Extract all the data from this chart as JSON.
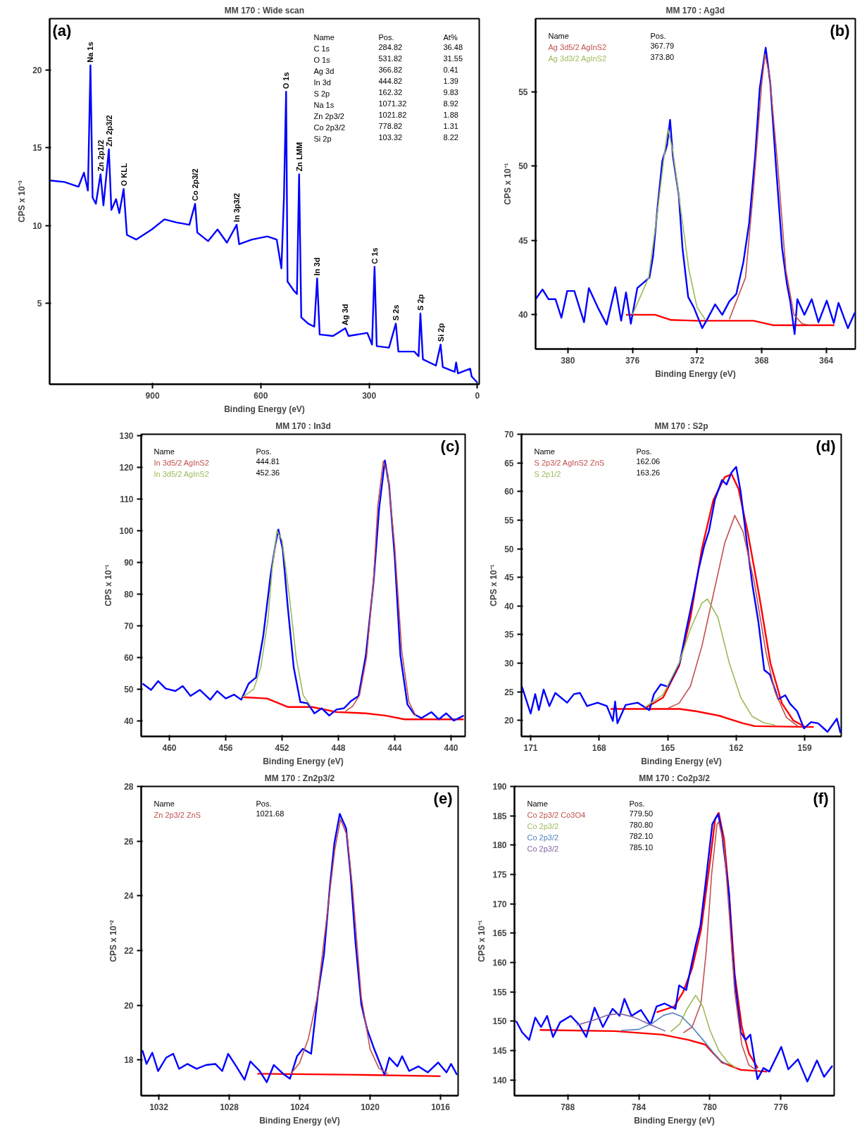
{
  "chart_data": [
    {
      "type": "line",
      "title": "MM 170 : Wide scan",
      "subtitle": "(a)",
      "xlabel": "Binding Energy (eV)",
      "ylabel": "CPS x 10⁻³",
      "xlim": [
        1185,
        -5
      ],
      "ylim": [
        -0.2,
        23.3
      ],
      "xticks": [
        900,
        600,
        300,
        0
      ],
      "yticks": [
        5,
        10,
        15,
        20
      ],
      "grid": false,
      "series": [
        {
          "color": "#0000ff",
          "x": [
            1183,
            1144,
            1105,
            1090,
            1079,
            1072,
            1066,
            1057,
            1044,
            1036,
            1021,
            1014,
            1001,
            992,
            980,
            971,
            945,
            902,
            867,
            833,
            798,
            782,
            776,
            746,
            720,
            694,
            667,
            660,
            625,
            582,
            556,
            543,
            536,
            530,
            526,
            508,
            500,
            494,
            488,
            469,
            452,
            444,
            437,
            400,
            366,
            357,
            305,
            292,
            285,
            279,
            245,
            226,
            219,
            175,
            163,
            158,
            151,
            115,
            102,
            96,
            63,
            59,
            54,
            20,
            16,
            0
          ],
          "values": [
            12.9,
            12.8,
            12.5,
            13.4,
            12.25,
            20.3,
            11.8,
            11.4,
            13.3,
            11.3,
            14.9,
            11.0,
            11.7,
            10.8,
            12.35,
            9.4,
            9.1,
            9.75,
            10.4,
            10.2,
            10.05,
            11.4,
            9.55,
            9.0,
            9.75,
            8.9,
            10.05,
            8.8,
            9.1,
            9.3,
            9.1,
            7.25,
            11.8,
            18.6,
            6.4,
            5.8,
            5.6,
            13.3,
            4.1,
            3.7,
            3.5,
            6.6,
            3.0,
            2.9,
            3.4,
            2.9,
            3.1,
            2.35,
            7.35,
            2.25,
            2.15,
            3.7,
            1.9,
            1.9,
            1.6,
            4.35,
            1.4,
            1.0,
            2.35,
            0.9,
            0.6,
            1.2,
            0.5,
            0.8,
            0.3,
            -0.1
          ]
        }
      ],
      "annotations": [
        {
          "text": "Na 1s",
          "x": 1072,
          "y": 20.3
        },
        {
          "text": "Zn 2p1/2",
          "x": 1044,
          "y": 13.3
        },
        {
          "text": "Zn 2p3/2",
          "x": 1021,
          "y": 14.9
        },
        {
          "text": "O KLL",
          "x": 980,
          "y": 12.35
        },
        {
          "text": "Co 2p3/2",
          "x": 782,
          "y": 11.4
        },
        {
          "text": "In 3p3/2",
          "x": 667,
          "y": 10.05
        },
        {
          "text": "O 1s",
          "x": 530,
          "y": 18.6
        },
        {
          "text": "Zn LMM",
          "x": 494,
          "y": 13.3
        },
        {
          "text": "In 3d",
          "x": 444,
          "y": 6.6
        },
        {
          "text": "Ag 3d",
          "x": 366,
          "y": 3.4
        },
        {
          "text": "C 1s",
          "x": 285,
          "y": 7.35
        },
        {
          "text": "S 2s",
          "x": 226,
          "y": 3.7
        },
        {
          "text": "S 2p",
          "x": 158,
          "y": 4.35
        },
        {
          "text": "Si 2p",
          "x": 102,
          "y": 2.35
        },
        "Name\tPos.\tAt%",
        "C 1s\t284.82\t36.48",
        "O 1s\t531.82\t31.55",
        "Ag 3d\t366.82\t0.41",
        "In 3d\t444.82\t1.39",
        "S 2p\t162.32\t9.83",
        "Na 1s\t1071.32\t8.92",
        "Zn 2p3/2\t1021.82\t1.88",
        "Co 2p3/2\t778.82\t1.31",
        "Si 2p\t103.32\t8.22"
      ]
    },
    {
      "type": "line",
      "title": "MM 170 : Ag3d",
      "subtitle": "(b)",
      "xlabel": "Binding Energy (eV)",
      "ylabel": "CPS x 10⁻¹",
      "xlim": [
        382,
        362.2
      ],
      "ylim": [
        37.7,
        59.9
      ],
      "xticks": [
        380,
        376,
        372,
        368,
        364
      ],
      "yticks": [
        40,
        45,
        50,
        55
      ],
      "grid": false,
      "legend": "top left",
      "legend_title": "Name",
      "series": [
        {
          "color": "#ff0000",
          "x": [
            376.4,
            374.6,
            373.6,
            372,
            368.5,
            367.3,
            363.5
          ],
          "values": [
            40.0,
            40.0,
            39.65,
            39.6,
            39.6,
            39.3,
            39.3
          ]
        },
        {
          "color": "#0000ff",
          "x": [
            382.0,
            381.57,
            381.2,
            380.77,
            380.4,
            380.04,
            379.6,
            379.0,
            378.7,
            378.15,
            377.6,
            377.06,
            376.7,
            376.4,
            376.1,
            375.7,
            374.95,
            374.73,
            374.44,
            374.15,
            373.86,
            373.67,
            373.5,
            373.13,
            372.9,
            372.55,
            372.2,
            371.68,
            371.32,
            370.88,
            370.44,
            370.0,
            369.57,
            369.13,
            368.77,
            368.4,
            368.12,
            367.75,
            367.46,
            367.1,
            366.73,
            366.44,
            366.23,
            365.96,
            365.79,
            365.35,
            364.9,
            364.48,
            363.97,
            363.53,
            363.24,
            362.66,
            362.23
          ],
          "values": [
            41.05,
            41.7,
            41.05,
            41.05,
            39.8,
            41.6,
            41.6,
            39.5,
            41.8,
            40.5,
            39.35,
            41.85,
            39.6,
            41.5,
            39.4,
            41.8,
            42.5,
            43.9,
            47.3,
            50.35,
            51.4,
            53.1,
            50.7,
            48.0,
            44.45,
            41.2,
            40.5,
            39.1,
            39.8,
            40.7,
            40.0,
            40.9,
            41.4,
            43.55,
            46.2,
            50.7,
            55.2,
            57.95,
            55.5,
            49.8,
            44.45,
            42.1,
            40.9,
            38.7,
            41.05,
            40.0,
            41.05,
            39.5,
            40.95,
            39.45,
            40.8,
            39.1,
            40.15
          ]
        },
        {
          "name": "Ag 3d5/2  AgInS2",
          "color": "#c0504d",
          "x": [
            370,
            369,
            368.5,
            368,
            367.79,
            367.5,
            367,
            366.5,
            366,
            365.5,
            365
          ],
          "values": [
            39.7,
            42.5,
            48.5,
            55.5,
            57.5,
            56,
            50,
            43,
            40,
            39.4,
            39.3
          ]
        },
        {
          "name": "Ag 3d3/2  AgInS2",
          "color": "#9bbb59",
          "x": [
            376,
            375,
            374.5,
            374,
            373.8,
            373.5,
            373,
            372.5,
            372,
            371.5
          ],
          "values": [
            40,
            42.5,
            46.5,
            51,
            52.5,
            51,
            47,
            43,
            40.5,
            39.7
          ]
        }
      ],
      "annotations": [
        "Pos.",
        "367.79",
        "373.80"
      ]
    },
    {
      "type": "line",
      "title": "MM 170 : In3d",
      "subtitle": "(c)",
      "xlabel": "Binding Energy (eV)",
      "ylabel": "CPS x 10⁻¹",
      "xlim": [
        462,
        439
      ],
      "ylim": [
        35,
        130.5
      ],
      "xticks": [
        460,
        456,
        452,
        448,
        444,
        440
      ],
      "yticks": [
        40,
        50,
        60,
        70,
        80,
        90,
        100,
        110,
        120,
        130
      ],
      "grid": false,
      "legend": "top left",
      "legend_title": "Name",
      "series": [
        {
          "color": "#ff0000",
          "x": [
            454.8,
            453.07,
            451.6,
            449.87,
            448.14,
            446.05,
            444.67,
            443.3,
            439.1
          ],
          "values": [
            47.4,
            47.0,
            44.3,
            44.3,
            42.7,
            42.3,
            41.6,
            40.4,
            40.4
          ]
        },
        {
          "color": "#0000ff",
          "x": [
            461.9,
            461.3,
            460.8,
            460.26,
            459.57,
            459.05,
            458.5,
            457.84,
            457.1,
            456.6,
            456.0,
            455.4,
            454.9,
            454.37,
            453.85,
            453.33,
            452.8,
            452.47,
            452.26,
            451.95,
            451.6,
            451.17,
            450.7,
            450.2,
            449.7,
            449.18,
            448.65,
            448.14,
            447.6,
            447.1,
            446.57,
            446.05,
            445.5,
            445.1,
            444.7,
            444.4,
            444.0,
            443.6,
            443.1,
            442.6,
            442.1,
            441.4,
            440.87,
            440.35,
            439.8,
            439.1
          ],
          "values": [
            51.7,
            49.7,
            52.5,
            50.1,
            49.35,
            50.9,
            47.8,
            49.7,
            46.6,
            49.35,
            47.0,
            48.2,
            46.6,
            51.7,
            53.6,
            66.9,
            86.4,
            95.7,
            100.4,
            94.2,
            76.2,
            56.75,
            45.85,
            45.5,
            42.3,
            43.9,
            41.6,
            43.5,
            43.9,
            46.2,
            47.8,
            60.65,
            84.0,
            107.4,
            122.2,
            114.4,
            91.8,
            60.65,
            45.1,
            41.95,
            40.8,
            42.7,
            40.4,
            42.3,
            40.0,
            41.6
          ]
        },
        {
          "name": "In 3d5/2  AgInS2",
          "color": "#c0504d",
          "x": [
            447.5,
            447,
            446.5,
            446,
            445.5,
            445.2,
            444.81,
            444.5,
            444,
            443.5,
            443,
            442.5
          ],
          "values": [
            43,
            44.5,
            48,
            60,
            85,
            108,
            122,
            118,
            95,
            62,
            46,
            41.5
          ]
        },
        {
          "name": "In 3d5/2  AgInS2",
          "color": "#9bbb59",
          "x": [
            454.8,
            454,
            453.5,
            453,
            452.7,
            452.36,
            452,
            451.5,
            451,
            450.5,
            450
          ],
          "values": [
            47.4,
            50,
            57,
            72,
            88,
            100,
            97,
            80,
            60,
            48,
            44.8
          ]
        }
      ],
      "annotations": [
        "Pos.",
        "444.81",
        "452.36"
      ]
    },
    {
      "type": "line",
      "title": "MM 170 : S2p",
      "subtitle": "(d)",
      "xlabel": "Binding Energy (eV)",
      "ylabel": "CPS x 10⁻¹",
      "xlim": [
        171.4,
        157.4
      ],
      "ylim": [
        17.2,
        70
      ],
      "xticks": [
        171,
        168,
        165,
        162,
        159
      ],
      "yticks": [
        20,
        25,
        30,
        35,
        40,
        45,
        50,
        55,
        60,
        65,
        70
      ],
      "grid": false,
      "legend": "top left",
      "legend_title": "Name",
      "series": [
        {
          "color": "#ff0000",
          "x": [
            167.5,
            164.47,
            163.75,
            162.73,
            161.7,
            161.18,
            158.6
          ],
          "values": [
            22.0,
            22.0,
            21.6,
            20.8,
            19.5,
            19.0,
            18.85
          ]
        },
        {
          "color": "#ff0000",
          "x": [
            166.0,
            165.2,
            164.5,
            164,
            163.5,
            163,
            162.5,
            162.2,
            161.9,
            161.5,
            161,
            160.5,
            160,
            159.5,
            159
          ],
          "values": [
            22.1,
            24.0,
            29.5,
            38,
            50,
            58.5,
            62.5,
            63.0,
            60.5,
            53,
            42,
            30,
            23,
            20,
            18.9
          ]
        },
        {
          "color": "#0000ff",
          "x": [
            171.38,
            171.0,
            170.8,
            170.64,
            170.43,
            170.18,
            169.92,
            169.4,
            169.1,
            168.84,
            168.53,
            168.07,
            167.66,
            167.4,
            167.3,
            167.2,
            166.84,
            166.32,
            165.8,
            165.6,
            165.3,
            164.99,
            164.78,
            164.47,
            164.17,
            163.86,
            163.65,
            163.4,
            163.19,
            162.93,
            162.62,
            162.42,
            162.21,
            162.0,
            161.8,
            161.54,
            161.29,
            161.03,
            160.77,
            160.52,
            160.16,
            159.85,
            159.64,
            159.33,
            159.03,
            158.72,
            158.41,
            158.0,
            157.59,
            157.43
          ],
          "values": [
            25.9,
            21.2,
            24.6,
            21.8,
            25.4,
            22.5,
            24.8,
            23.1,
            24.6,
            24.8,
            22.5,
            23.1,
            22.5,
            19.9,
            23.3,
            19.5,
            22.7,
            23.1,
            21.8,
            24.6,
            26.3,
            25.9,
            27.6,
            30.1,
            36.1,
            42.0,
            46.3,
            50.5,
            53.1,
            58.6,
            62.0,
            61.2,
            63.3,
            64.3,
            59.9,
            51.4,
            43.7,
            37.3,
            28.8,
            28.0,
            23.7,
            24.4,
            22.9,
            21.6,
            18.6,
            19.7,
            19.5,
            18.0,
            20.3,
            17.8
          ]
        },
        {
          "name": "S 2p3/2 AgInS2 ZnS",
          "color": "#c0504d",
          "x": [
            165,
            164.5,
            164,
            163.5,
            163,
            162.5,
            162.06,
            161.7,
            161.2,
            160.7,
            160.3,
            159.8,
            159.3
          ],
          "values": [
            22.1,
            23.0,
            26,
            33,
            42,
            51,
            55.8,
            53,
            44,
            32,
            25,
            20.5,
            19.0
          ]
        },
        {
          "name": "S 2p1/2",
          "color": "#9bbb59",
          "x": [
            166.0,
            165.2,
            164.5,
            164,
            163.5,
            163.26,
            162.8,
            162.3,
            161.8,
            161.3,
            160.8,
            160.3
          ],
          "values": [
            22.3,
            24.5,
            30,
            36,
            40.5,
            41.2,
            38,
            30,
            24,
            20.7,
            19.6,
            19.2
          ]
        }
      ],
      "annotations": [
        "Pos.",
        "162.06",
        "163.26"
      ]
    },
    {
      "type": "line",
      "title": "MM 170 : Zn2p3/2",
      "subtitle": "(e)",
      "xlabel": "Binding Energy (eV)",
      "ylabel": "CPS x 10⁻²",
      "xlim": [
        1033,
        1015
      ],
      "ylim": [
        16.7,
        28
      ],
      "xticks": [
        1032,
        1028,
        1024,
        1020,
        1016
      ],
      "yticks": [
        18,
        20,
        22,
        24,
        26,
        28
      ],
      "grid": false,
      "legend": "top left",
      "legend_title": "Name",
      "series": [
        {
          "color": "#ff0000",
          "x": [
            1026.4,
            1020.43,
            1016.0
          ],
          "values": [
            17.5,
            17.46,
            17.41
          ]
        },
        {
          "color": "#0000ff",
          "x": [
            1032.93,
            1032.7,
            1032.37,
            1032.04,
            1031.58,
            1031.18,
            1030.85,
            1030.38,
            1029.85,
            1029.32,
            1028.79,
            1028.4,
            1028.06,
            1027.6,
            1027.13,
            1026.8,
            1026.27,
            1025.87,
            1025.47,
            1024.94,
            1024.55,
            1024.15,
            1023.82,
            1023.35,
            1022.95,
            1022.62,
            1022.29,
            1022.03,
            1021.72,
            1021.36,
            1021.1,
            1020.83,
            1020.5,
            1020.17,
            1019.77,
            1019.18,
            1018.91,
            1018.45,
            1018.18,
            1017.78,
            1017.25,
            1016.72,
            1016.13,
            1015.66,
            1015.4,
            1015.06
          ],
          "values": [
            18.36,
            17.86,
            18.27,
            17.6,
            18.09,
            18.23,
            17.68,
            17.86,
            17.68,
            17.82,
            17.86,
            17.6,
            18.23,
            17.77,
            17.28,
            17.95,
            17.6,
            17.19,
            17.82,
            17.5,
            17.32,
            18.14,
            18.41,
            18.23,
            20.49,
            21.85,
            24.29,
            25.92,
            27.0,
            26.46,
            24.74,
            22.3,
            20.04,
            19.13,
            18.41,
            17.46,
            18.09,
            17.77,
            18.14,
            17.6,
            17.77,
            17.55,
            17.91,
            17.55,
            17.86,
            17.46
          ]
        },
        {
          "name": "Zn 2p3/2  ZnS",
          "color": "#c0504d",
          "x": [
            1024.5,
            1024,
            1023.5,
            1023,
            1022.5,
            1022,
            1021.68,
            1021.3,
            1021,
            1020.5,
            1020,
            1019.5,
            1019
          ],
          "values": [
            17.5,
            17.9,
            18.8,
            20.3,
            23.0,
            25.7,
            26.8,
            26.2,
            24.3,
            20.3,
            18.4,
            17.7,
            17.5
          ]
        }
      ],
      "annotations": [
        "Pos.",
        "1021.68"
      ]
    },
    {
      "type": "line",
      "title": "MM 170 : Co2p3/2",
      "subtitle": "(f)",
      "xlabel": "Binding Energy (eV)",
      "ylabel": "CPS x 10⁻¹",
      "xlim": [
        791,
        773
      ],
      "ylim": [
        137.3,
        190
      ],
      "xticks": [
        788,
        784,
        780,
        776
      ],
      "yticks": [
        140,
        145,
        150,
        155,
        160,
        165,
        170,
        175,
        180,
        185,
        190
      ],
      "grid": false,
      "legend": "top left",
      "legend_title": "Name",
      "series": [
        {
          "color": "#ff0000",
          "x": [
            789.57,
            785.35,
            782.67,
            781.2,
            780.26,
            779.33,
            778.26,
            776.78
          ],
          "values": [
            148.5,
            148.3,
            147.7,
            146.8,
            146.0,
            143.0,
            141.7,
            141.4
          ]
        },
        {
          "color": "#ff0000",
          "x": [
            783,
            782,
            781.5,
            781,
            780.5,
            780,
            779.7,
            779.5,
            779.2,
            778.9,
            778.6,
            778.2,
            777.8,
            777.3
          ],
          "values": [
            151.5,
            152.5,
            155,
            159,
            165.5,
            177,
            184.5,
            185.5,
            181,
            171,
            158,
            149,
            144.5,
            142
          ]
        },
        {
          "color": "#0000ff",
          "x": [
            790.9,
            790.57,
            790.17,
            789.83,
            789.5,
            789.16,
            788.83,
            788.43,
            787.83,
            787.36,
            786.96,
            786.49,
            786.02,
            785.48,
            785.08,
            784.81,
            784.41,
            783.88,
            783.34,
            783.0,
            782.54,
            781.94,
            781.73,
            781.33,
            781.07,
            780.8,
            780.53,
            780.26,
            779.86,
            779.53,
            779.33,
            778.92,
            778.72,
            778.52,
            778.26,
            777.99,
            777.72,
            777.32,
            776.98,
            776.65,
            775.98,
            775.58,
            775.04,
            774.51,
            773.97,
            773.57,
            773.1
          ],
          "values": [
            150.0,
            148.1,
            146.8,
            150.6,
            149.0,
            150.9,
            147.3,
            149.8,
            150.9,
            149.4,
            147.3,
            152.3,
            149.0,
            152.1,
            150.9,
            153.8,
            150.9,
            151.9,
            149.4,
            152.5,
            153.0,
            152.1,
            156.1,
            155.3,
            159.1,
            162.9,
            166.3,
            173.0,
            183.6,
            185.3,
            182.3,
            171.8,
            161.2,
            154.9,
            148.1,
            146.8,
            147.7,
            140.1,
            142.0,
            141.4,
            145.6,
            141.8,
            143.5,
            139.7,
            143.3,
            140.5,
            142.4
          ]
        },
        {
          "name": "Co 2p3/2 Co3O4",
          "color": "#c0504d",
          "x": [
            781.5,
            781,
            780.5,
            780.2,
            779.9,
            779.6,
            779.5,
            779.2,
            778.9,
            778.6,
            778.2,
            777.8,
            777.3
          ],
          "values": [
            148.0,
            149,
            153,
            162,
            175,
            183.5,
            184,
            180,
            168,
            155,
            146,
            142.5,
            141.5
          ]
        },
        {
          "name": "Co 2p3/2",
          "color": "#9bbb59",
          "x": [
            782.2,
            781.7,
            781.3,
            780.8,
            780.4,
            780,
            779.5,
            779,
            778.5
          ],
          "values": [
            148.2,
            149.5,
            152,
            154.4,
            152.5,
            148.5,
            145,
            143,
            142
          ]
        },
        {
          "name": "Co 2p3/2",
          "color": "#4f81bd",
          "x": [
            785,
            784,
            783.2,
            782.6,
            782.1,
            781.6,
            781,
            780.3,
            779.5,
            779
          ],
          "values": [
            148.4,
            148.6,
            149.7,
            151.0,
            151.4,
            150.8,
            149,
            146.5,
            143.5,
            142.5
          ]
        },
        {
          "name": "Co 2p3/2",
          "color": "#8064a2",
          "x": [
            787.5,
            786.5,
            785.8,
            785.1,
            784.3,
            783.5,
            782.5
          ],
          "values": [
            149.3,
            150.2,
            151.0,
            151.3,
            150.7,
            149.6,
            148.3
          ]
        }
      ],
      "annotations": [
        "Pos.",
        "779.50",
        "780.80",
        "782.10",
        "785.10"
      ]
    }
  ]
}
